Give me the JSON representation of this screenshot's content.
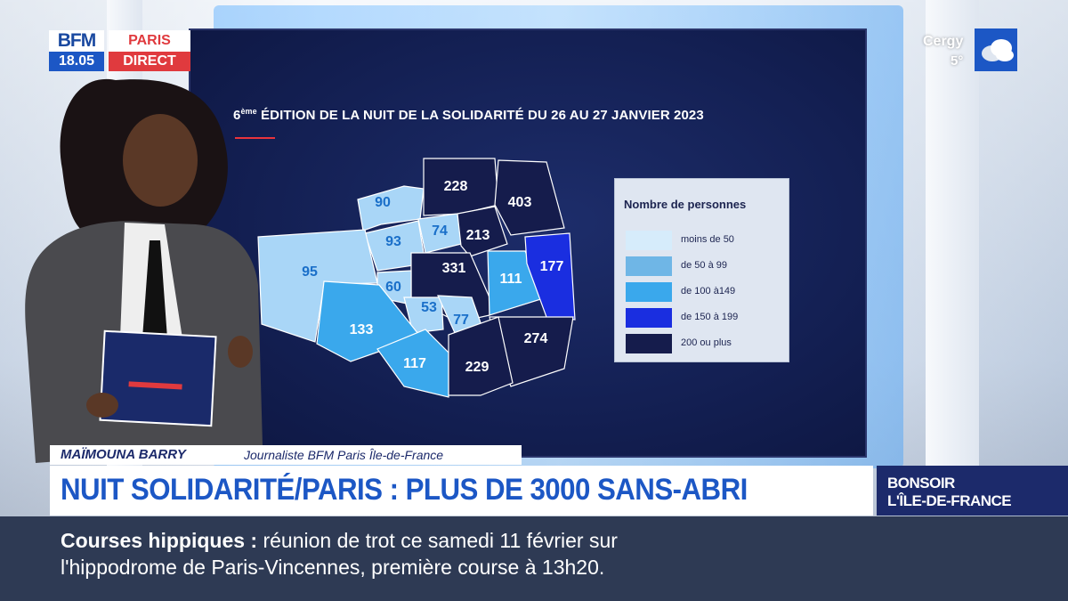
{
  "logo": {
    "brand": "BFM",
    "region": "PARIS",
    "time": "18.05",
    "live": "DIRECT"
  },
  "weather": {
    "city": "Cergy",
    "temperature": "5°",
    "icon": "cloud-icon"
  },
  "screen": {
    "title_prefix": "6",
    "title_sup": "ème",
    "title": " ÉDITION DE LA NUIT DE LA SOLIDARITÉ DU 26 AU 27 JANVIER 2023"
  },
  "map": {
    "arrondissements": [
      {
        "value": "90",
        "color": "#a9d6f7"
      },
      {
        "value": "228",
        "color": "#151c4c"
      },
      {
        "value": "403",
        "color": "#151c4c"
      },
      {
        "value": "93",
        "color": "#a9d6f7"
      },
      {
        "value": "74",
        "color": "#a9d6f7"
      },
      {
        "value": "213",
        "color": "#151c4c"
      },
      {
        "value": "95",
        "color": "#a9d6f7"
      },
      {
        "value": "331",
        "color": "#151c4c"
      },
      {
        "value": "111",
        "color": "#3aa8ec"
      },
      {
        "value": "177",
        "color": "#1a2ee0"
      },
      {
        "value": "60",
        "color": "#a9d6f7"
      },
      {
        "value": "53",
        "color": "#a9d6f7"
      },
      {
        "value": "77",
        "color": "#a9d6f7"
      },
      {
        "value": "133",
        "color": "#3aa8ec"
      },
      {
        "value": "274",
        "color": "#151c4c"
      },
      {
        "value": "117",
        "color": "#3aa8ec"
      },
      {
        "value": "229",
        "color": "#151c4c"
      }
    ]
  },
  "legend": {
    "title": "Nombre de personnes",
    "items": [
      {
        "label": "moins de 50",
        "color": "#d6ecfb"
      },
      {
        "label": "de 50 à 99",
        "color": "#6fb6e6"
      },
      {
        "label": "de 100 à149",
        "color": "#3aa8ec"
      },
      {
        "label": "de 150 à 199",
        "color": "#1a2ee0"
      },
      {
        "label": "200 ou plus",
        "color": "#151c4c"
      }
    ]
  },
  "lower_third": {
    "name": "MAÏMOUNA BARRY",
    "role": "Journaliste BFM Paris Île-de-France",
    "headline": "NUIT SOLIDARITÉ/PARIS : PLUS DE 3000 SANS-ABRI",
    "program_line1": "BONSOIR",
    "program_line2": "L'ÎLE-DE-FRANCE"
  },
  "ticker": {
    "topic": "Courses hippiques  :",
    "line1": " réunion de trot ce samedi 11 février sur",
    "line2": "l'hippodrome de Paris-Vincennes, première course à 13h20."
  }
}
